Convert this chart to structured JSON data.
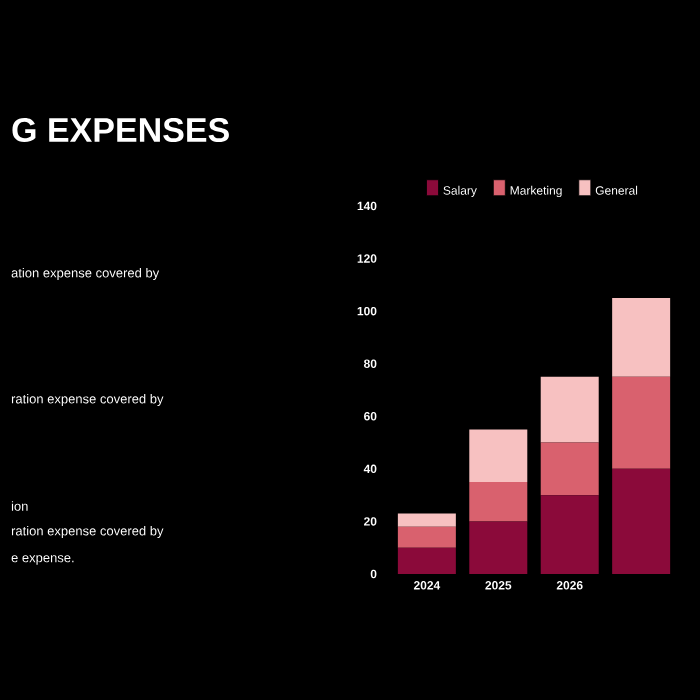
{
  "chart_data": {
    "type": "bar",
    "title": "G EXPENSES",
    "annotations": [
      "ation expense covered by",
      "ration expense covered by",
      "ion",
      "ration expense covered by",
      "e expense."
    ],
    "categories": [
      "2024",
      "2025",
      "2026",
      null
    ],
    "stacked": true,
    "series": [
      {
        "name": "Salary",
        "color": "#8b0a3a",
        "values": [
          10,
          20,
          30,
          40
        ]
      },
      {
        "name": "Marketing",
        "color": "#d9616e",
        "values": [
          8,
          15,
          20,
          35
        ]
      },
      {
        "name": "General",
        "color": "#f7c1c1",
        "values": [
          5,
          20,
          25,
          30
        ]
      }
    ],
    "ylim": [
      0,
      140
    ],
    "yticks": [
      0,
      20,
      40,
      60,
      80,
      100,
      120,
      140
    ],
    "legend": "top"
  }
}
